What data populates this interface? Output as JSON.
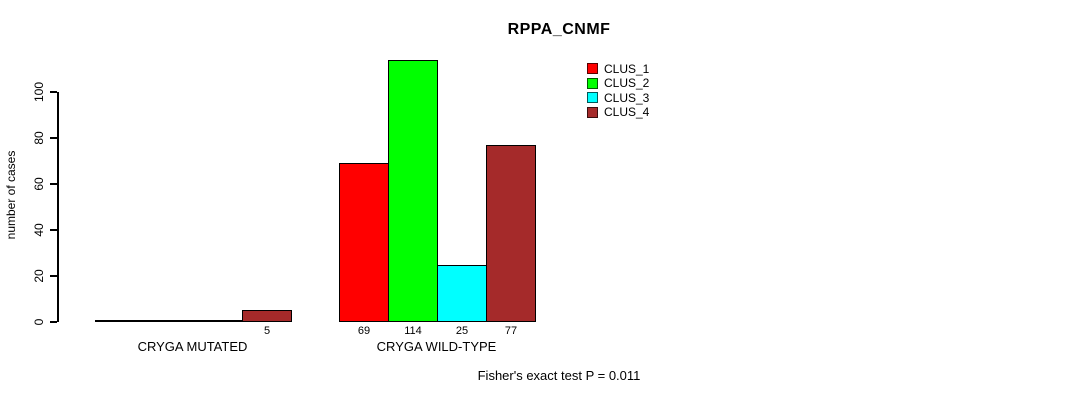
{
  "chart_data": {
    "type": "bar",
    "title": "RPPA_CNMF",
    "ylabel": "number of cases",
    "xlabel": "",
    "yticks": [
      0,
      20,
      40,
      60,
      80,
      100
    ],
    "axis_range": [
      0,
      100
    ],
    "grid": false,
    "categories": [
      "CRYGA MUTATED",
      "CRYGA WILD-TYPE"
    ],
    "series": [
      {
        "name": "CLUS_1",
        "color": "#ff0000",
        "values": [
          0,
          69
        ]
      },
      {
        "name": "CLUS_2",
        "color": "#00ff00",
        "values": [
          0,
          114
        ]
      },
      {
        "name": "CLUS_3",
        "color": "#00ffff",
        "values": [
          0,
          25
        ]
      },
      {
        "name": "CLUS_4",
        "color": "#a52a2a",
        "values": [
          5,
          77
        ]
      }
    ],
    "value_labels": {
      "shown_for_nonzero_bars": true,
      "mutated_shown": [
        "5"
      ],
      "wildtype_shown": [
        "69",
        "114",
        "25",
        "77"
      ]
    },
    "legend": {
      "position": "top-right",
      "entries": [
        "CLUS_1",
        "CLUS_2",
        "CLUS_3",
        "CLUS_4"
      ]
    },
    "annotation": "Fisher's exact test P = 0.011"
  }
}
